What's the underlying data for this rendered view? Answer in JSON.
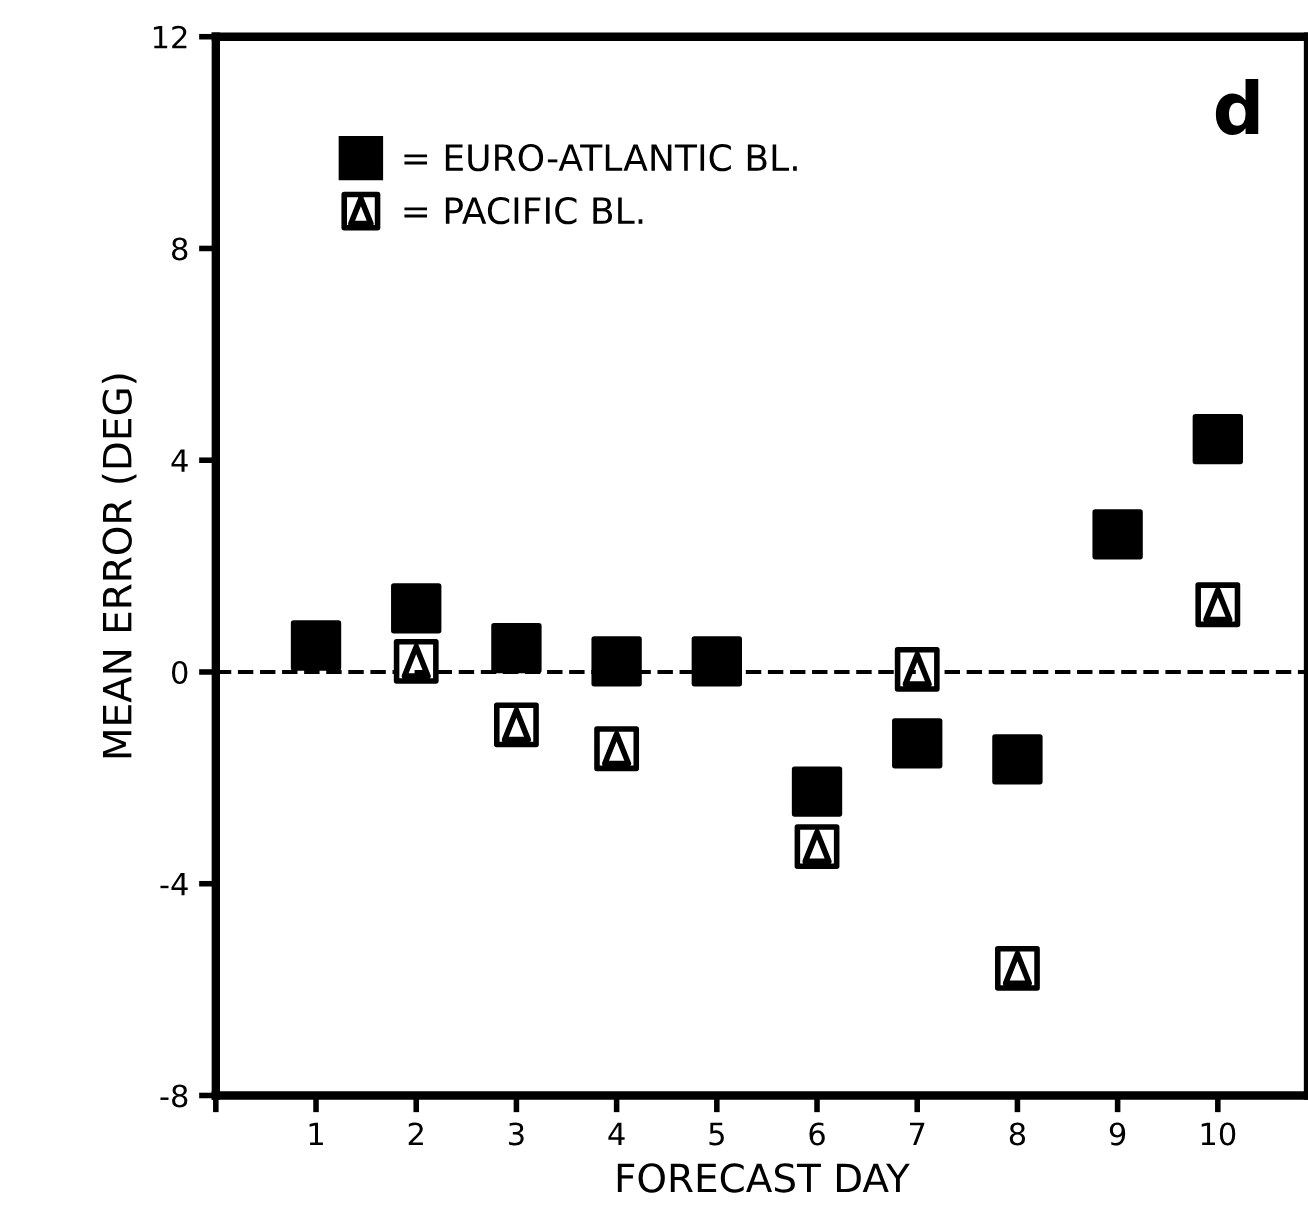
{
  "chart_data": {
    "type": "scatter",
    "xlabel": "FORECAST DAY",
    "ylabel": "MEAN ERROR (DEG)",
    "annotations": [
      "d"
    ],
    "x": [
      1,
      2,
      3,
      4,
      5,
      6,
      7,
      8,
      9,
      10
    ],
    "series": [
      {
        "name": "= PACIFIC BL.",
        "color": "#000000",
        "marker": "triangle",
        "values": [
          null,
          0.2,
          -1.0,
          -1.45,
          null,
          -3.3,
          0.05,
          -5.6,
          null,
          1.27
        ]
      },
      {
        "name": "= EURO-ATLANTIC BL.",
        "color": "#000000",
        "marker": "square",
        "values": [
          0.5,
          1.2,
          0.45,
          0.2,
          0.2,
          -2.26,
          -1.35,
          -1.65,
          2.6,
          4.4
        ]
      }
    ],
    "xlim": [
      0,
      10.9
    ],
    "xticks": [
      {
        "value": 0,
        "label": null
      },
      1,
      2,
      3,
      4,
      5,
      6,
      7,
      8,
      9,
      10
    ],
    "ylim": [
      -8,
      12
    ],
    "yticks": [
      -8,
      -4,
      0,
      4,
      8,
      12
    ],
    "ref_lines": [
      {
        "axis": "y",
        "value": 0,
        "line_style": "dashed",
        "color": "#000000"
      }
    ],
    "grid": false,
    "legend": "top left"
  }
}
